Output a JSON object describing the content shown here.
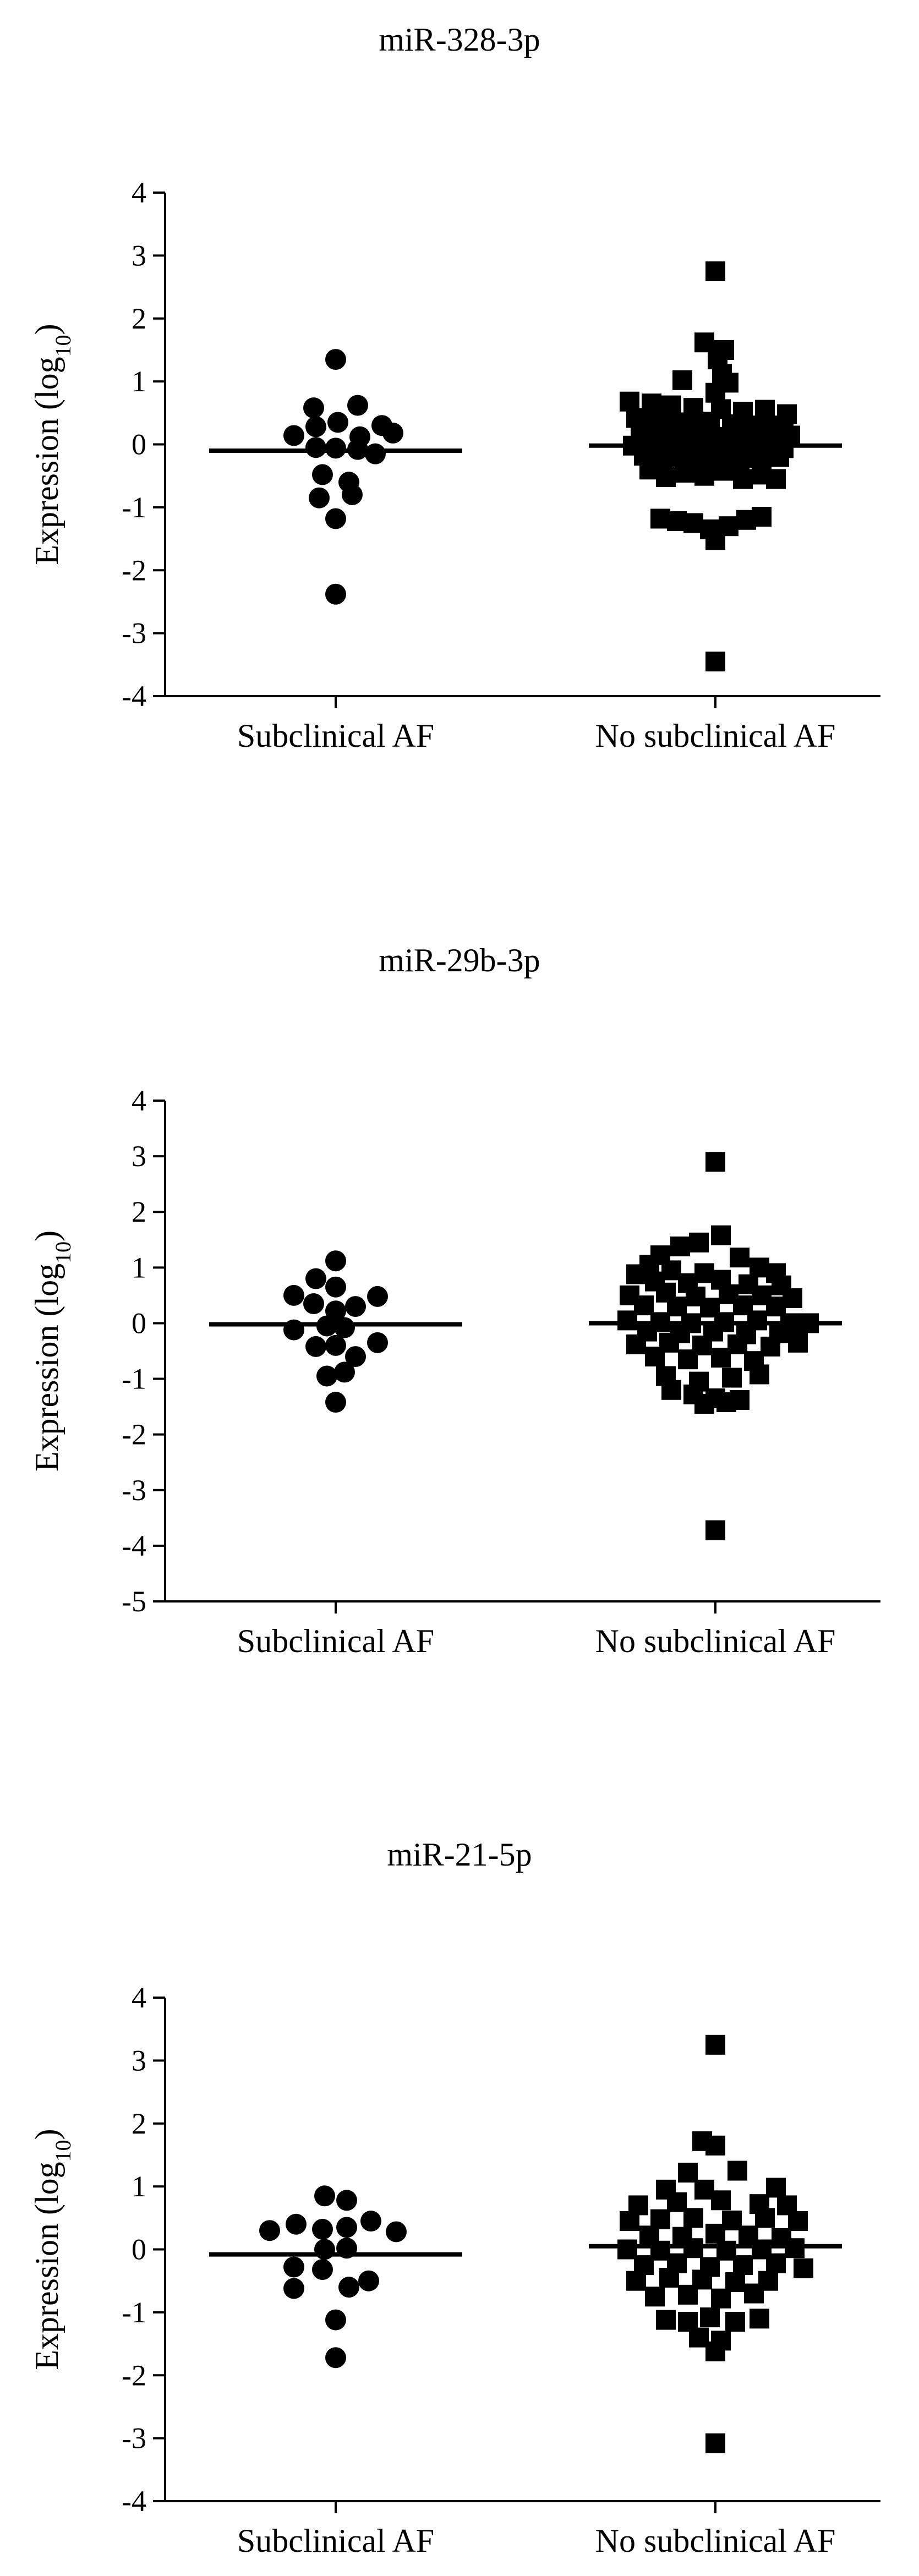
{
  "figure": {
    "colors": {
      "ink": "#000000",
      "background": "#ffffff"
    },
    "marker_shapes": [
      "circle",
      "square"
    ]
  },
  "chart_data": [
    {
      "type": "scatter",
      "title": "miR-328-3p",
      "ylabel": "Expression (log10)",
      "categories": [
        "Subclinical AF",
        "No subclinical AF"
      ],
      "ylim": [
        -4,
        4
      ],
      "yticks": [
        "4",
        "3",
        "2",
        "1",
        "0",
        "-1",
        "-2",
        "-3",
        "-4"
      ],
      "grid": false,
      "series": [
        {
          "marker": "circle",
          "median": -0.1,
          "points": [
            [
              0,
              1.35
            ],
            [
              -0.2,
              0.58
            ],
            [
              0.2,
              0.62
            ],
            [
              -0.38,
              0.14
            ],
            [
              -0.18,
              0.28
            ],
            [
              0.02,
              0.35
            ],
            [
              0.22,
              0.12
            ],
            [
              0.52,
              0.18
            ],
            [
              0.42,
              0.3
            ],
            [
              -0.18,
              -0.05
            ],
            [
              0.0,
              -0.06
            ],
            [
              0.2,
              -0.08
            ],
            [
              0.36,
              -0.15
            ],
            [
              -0.12,
              -0.48
            ],
            [
              0.12,
              -0.6
            ],
            [
              -0.15,
              -0.85
            ],
            [
              0.15,
              -0.8
            ],
            [
              0.0,
              -1.18
            ],
            [
              0.0,
              -2.38
            ]
          ]
        },
        {
          "marker": "square",
          "median": -0.02,
          "points": [
            [
              0.0,
              2.75
            ],
            [
              -0.1,
              1.62
            ],
            [
              0.08,
              1.5
            ],
            [
              0.02,
              1.35
            ],
            [
              0.06,
              1.12
            ],
            [
              -0.3,
              1.02
            ],
            [
              0.12,
              0.98
            ],
            [
              0.0,
              0.82
            ],
            [
              -0.78,
              0.68
            ],
            [
              -0.58,
              0.65
            ],
            [
              -0.4,
              0.62
            ],
            [
              -0.2,
              0.58
            ],
            [
              0.05,
              0.56
            ],
            [
              0.25,
              0.52
            ],
            [
              0.45,
              0.55
            ],
            [
              0.65,
              0.48
            ],
            [
              -0.72,
              0.42
            ],
            [
              -0.55,
              0.38
            ],
            [
              -0.38,
              0.35
            ],
            [
              -0.22,
              0.33
            ],
            [
              -0.05,
              0.36
            ],
            [
              0.15,
              0.32
            ],
            [
              0.32,
              0.3
            ],
            [
              0.5,
              0.27
            ],
            [
              0.62,
              0.3
            ],
            [
              -0.68,
              0.15
            ],
            [
              -0.5,
              0.12
            ],
            [
              -0.32,
              0.14
            ],
            [
              -0.15,
              0.1
            ],
            [
              0.02,
              0.12
            ],
            [
              0.18,
              0.1
            ],
            [
              0.35,
              0.08
            ],
            [
              0.52,
              0.12
            ],
            [
              0.68,
              0.14
            ],
            [
              -0.75,
              -0.02
            ],
            [
              -0.58,
              -0.05
            ],
            [
              -0.42,
              -0.04
            ],
            [
              -0.25,
              -0.06
            ],
            [
              -0.08,
              -0.03
            ],
            [
              0.1,
              -0.07
            ],
            [
              0.28,
              -0.05
            ],
            [
              0.45,
              -0.08
            ],
            [
              0.62,
              -0.06
            ],
            [
              -0.65,
              -0.18
            ],
            [
              -0.48,
              -0.22
            ],
            [
              -0.3,
              -0.2
            ],
            [
              -0.12,
              -0.24
            ],
            [
              0.05,
              -0.2
            ],
            [
              0.22,
              -0.25
            ],
            [
              0.4,
              -0.22
            ],
            [
              0.58,
              -0.2
            ],
            [
              -0.6,
              -0.4
            ],
            [
              -0.45,
              -0.52
            ],
            [
              -0.28,
              -0.45
            ],
            [
              -0.1,
              -0.5
            ],
            [
              0.08,
              -0.42
            ],
            [
              0.25,
              -0.55
            ],
            [
              0.42,
              -0.48
            ],
            [
              0.55,
              -0.55
            ],
            [
              -0.5,
              -1.18
            ],
            [
              -0.35,
              -1.22
            ],
            [
              -0.2,
              -1.25
            ],
            [
              -0.05,
              -1.35
            ],
            [
              0.0,
              -1.52
            ],
            [
              0.12,
              -1.3
            ],
            [
              0.28,
              -1.2
            ],
            [
              0.42,
              -1.15
            ],
            [
              0.0,
              -3.45
            ]
          ]
        }
      ]
    },
    {
      "type": "scatter",
      "title": "miR-29b-3p",
      "ylabel": "Expression (log10)",
      "categories": [
        "Subclinical AF",
        "No subclinical AF"
      ],
      "ylim": [
        -5,
        4
      ],
      "yticks": [
        "4",
        "3",
        "2",
        "1",
        "0",
        "-1",
        "-2",
        "-3",
        "-4",
        "-5"
      ],
      "grid": false,
      "series": [
        {
          "marker": "circle",
          "median": -0.02,
          "points": [
            [
              0.0,
              1.12
            ],
            [
              -0.18,
              0.8
            ],
            [
              0.0,
              0.65
            ],
            [
              -0.38,
              0.5
            ],
            [
              0.38,
              0.48
            ],
            [
              -0.2,
              0.35
            ],
            [
              0.0,
              0.22
            ],
            [
              0.18,
              0.3
            ],
            [
              -0.38,
              -0.12
            ],
            [
              -0.08,
              -0.05
            ],
            [
              0.08,
              -0.08
            ],
            [
              0.38,
              -0.35
            ],
            [
              -0.18,
              -0.42
            ],
            [
              0.0,
              -0.4
            ],
            [
              0.18,
              -0.6
            ],
            [
              -0.08,
              -0.95
            ],
            [
              0.08,
              -0.88
            ],
            [
              0.0,
              -1.42
            ]
          ]
        },
        {
          "marker": "square",
          "median": 0.0,
          "points": [
            [
              0.0,
              2.9
            ],
            [
              0.05,
              1.58
            ],
            [
              -0.15,
              1.45
            ],
            [
              -0.32,
              1.38
            ],
            [
              -0.5,
              1.22
            ],
            [
              0.22,
              1.18
            ],
            [
              -0.6,
              1.05
            ],
            [
              0.4,
              1.0
            ],
            [
              -0.72,
              0.88
            ],
            [
              -0.4,
              0.95
            ],
            [
              -0.1,
              0.9
            ],
            [
              0.55,
              0.9
            ],
            [
              -0.55,
              0.75
            ],
            [
              -0.25,
              0.72
            ],
            [
              0.05,
              0.78
            ],
            [
              0.3,
              0.7
            ],
            [
              0.6,
              0.68
            ],
            [
              -0.78,
              0.5
            ],
            [
              -0.45,
              0.55
            ],
            [
              -0.18,
              0.48
            ],
            [
              0.12,
              0.52
            ],
            [
              0.42,
              0.5
            ],
            [
              0.7,
              0.45
            ],
            [
              -0.65,
              0.32
            ],
            [
              -0.35,
              0.3
            ],
            [
              -0.05,
              0.28
            ],
            [
              0.25,
              0.32
            ],
            [
              0.55,
              0.3
            ],
            [
              -0.8,
              0.05
            ],
            [
              -0.5,
              0.02
            ],
            [
              -0.22,
              0.0
            ],
            [
              0.08,
              0.02
            ],
            [
              0.38,
              0.05
            ],
            [
              0.68,
              0.0
            ],
            [
              0.85,
              0.0
            ],
            [
              -0.62,
              -0.15
            ],
            [
              -0.32,
              -0.18
            ],
            [
              -0.02,
              -0.15
            ],
            [
              0.28,
              -0.2
            ],
            [
              0.58,
              -0.18
            ],
            [
              -0.72,
              -0.38
            ],
            [
              -0.42,
              -0.35
            ],
            [
              -0.12,
              -0.4
            ],
            [
              0.2,
              -0.38
            ],
            [
              0.5,
              -0.42
            ],
            [
              0.75,
              -0.35
            ],
            [
              -0.55,
              -0.6
            ],
            [
              -0.25,
              -0.65
            ],
            [
              0.05,
              -0.62
            ],
            [
              0.35,
              -0.68
            ],
            [
              -0.45,
              -0.95
            ],
            [
              -0.15,
              -1.05
            ],
            [
              0.15,
              -0.98
            ],
            [
              0.4,
              -0.92
            ],
            [
              -0.4,
              -1.2
            ],
            [
              -0.2,
              -1.28
            ],
            [
              0.0,
              -1.35
            ],
            [
              0.22,
              -1.38
            ],
            [
              -0.1,
              -1.45
            ],
            [
              0.1,
              -1.42
            ],
            [
              0.0,
              -3.72
            ]
          ]
        }
      ]
    },
    {
      "type": "scatter",
      "title": "miR-21-5p",
      "ylabel": "Expression (log10)",
      "categories": [
        "Subclinical AF",
        "No subclinical AF"
      ],
      "ylim": [
        -4,
        4
      ],
      "yticks": [
        "4",
        "3",
        "2",
        "1",
        "0",
        "-1",
        "-2",
        "-3",
        "-4"
      ],
      "grid": false,
      "series": [
        {
          "marker": "circle",
          "median": -0.08,
          "points": [
            [
              -0.1,
              0.85
            ],
            [
              0.1,
              0.78
            ],
            [
              -0.36,
              0.4
            ],
            [
              0.32,
              0.45
            ],
            [
              -0.6,
              0.3
            ],
            [
              -0.12,
              0.32
            ],
            [
              0.1,
              0.35
            ],
            [
              0.55,
              0.28
            ],
            [
              -0.1,
              0.0
            ],
            [
              0.1,
              0.02
            ],
            [
              -0.38,
              -0.28
            ],
            [
              -0.12,
              -0.32
            ],
            [
              0.3,
              -0.5
            ],
            [
              -0.38,
              -0.62
            ],
            [
              0.12,
              -0.6
            ],
            [
              0.0,
              -1.12
            ],
            [
              0.0,
              -1.72
            ]
          ]
        },
        {
          "marker": "square",
          "median": 0.05,
          "points": [
            [
              0.0,
              3.25
            ],
            [
              -0.12,
              1.72
            ],
            [
              0.0,
              1.65
            ],
            [
              0.2,
              1.25
            ],
            [
              -0.25,
              1.22
            ],
            [
              0.55,
              0.98
            ],
            [
              -0.45,
              0.95
            ],
            [
              -0.1,
              0.95
            ],
            [
              -0.7,
              0.7
            ],
            [
              -0.35,
              0.75
            ],
            [
              0.05,
              0.78
            ],
            [
              0.4,
              0.72
            ],
            [
              0.65,
              0.7
            ],
            [
              -0.78,
              0.45
            ],
            [
              -0.5,
              0.48
            ],
            [
              -0.2,
              0.5
            ],
            [
              0.15,
              0.46
            ],
            [
              0.45,
              0.5
            ],
            [
              0.75,
              0.45
            ],
            [
              -0.6,
              0.22
            ],
            [
              -0.3,
              0.2
            ],
            [
              0.0,
              0.25
            ],
            [
              0.3,
              0.22
            ],
            [
              0.6,
              0.18
            ],
            [
              -0.8,
              0.0
            ],
            [
              -0.5,
              -0.02
            ],
            [
              -0.2,
              0.02
            ],
            [
              0.1,
              -0.02
            ],
            [
              0.42,
              0.0
            ],
            [
              0.72,
              0.02
            ],
            [
              -0.65,
              -0.25
            ],
            [
              -0.35,
              -0.22
            ],
            [
              -0.05,
              -0.28
            ],
            [
              0.25,
              -0.25
            ],
            [
              0.55,
              -0.22
            ],
            [
              0.8,
              -0.3
            ],
            [
              -0.72,
              -0.5
            ],
            [
              -0.42,
              -0.45
            ],
            [
              -0.12,
              -0.48
            ],
            [
              0.18,
              -0.52
            ],
            [
              0.48,
              -0.5
            ],
            [
              -0.55,
              -0.75
            ],
            [
              -0.25,
              -0.72
            ],
            [
              0.05,
              -0.78
            ],
            [
              0.35,
              -0.7
            ],
            [
              -0.45,
              -1.12
            ],
            [
              -0.25,
              -1.15
            ],
            [
              -0.05,
              -1.08
            ],
            [
              0.18,
              -1.15
            ],
            [
              0.4,
              -1.1
            ],
            [
              -0.15,
              -1.4
            ],
            [
              0.05,
              -1.45
            ],
            [
              0.0,
              -1.62
            ],
            [
              0.0,
              -3.08
            ]
          ]
        }
      ]
    }
  ]
}
